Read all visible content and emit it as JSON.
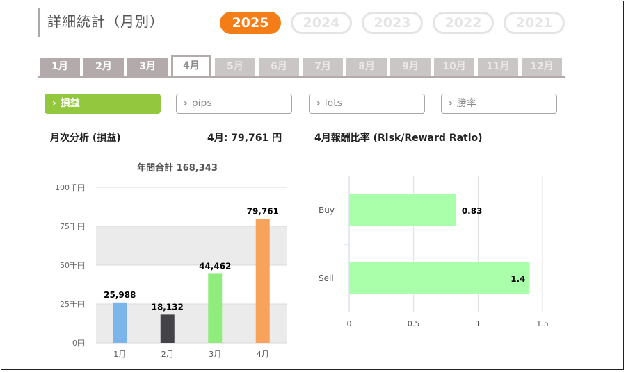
{
  "page": {
    "title": "詳細統計（月別）"
  },
  "years": [
    {
      "label": "2025",
      "active": true
    },
    {
      "label": "2024",
      "active": false
    },
    {
      "label": "2023",
      "active": false
    },
    {
      "label": "2022",
      "active": false
    },
    {
      "label": "2021",
      "active": false
    }
  ],
  "months": [
    {
      "label": "1月",
      "state": "available"
    },
    {
      "label": "2月",
      "state": "available"
    },
    {
      "label": "3月",
      "state": "available"
    },
    {
      "label": "4月",
      "state": "selected"
    },
    {
      "label": "5月",
      "state": "disabled"
    },
    {
      "label": "6月",
      "state": "disabled"
    },
    {
      "label": "7月",
      "state": "disabled"
    },
    {
      "label": "8月",
      "state": "disabled"
    },
    {
      "label": "9月",
      "state": "disabled"
    },
    {
      "label": "10月",
      "state": "disabled"
    },
    {
      "label": "11月",
      "state": "disabled"
    },
    {
      "label": "12月",
      "state": "disabled"
    }
  ],
  "metrics": [
    {
      "label": "損益",
      "active": true
    },
    {
      "label": "pips",
      "active": false
    },
    {
      "label": "lots",
      "active": false
    },
    {
      "label": "勝率",
      "active": false
    }
  ],
  "chevron": "›",
  "summary": {
    "monthly_analysis_label": "月次分析 (損益)",
    "month_value_label": "4月:  79,761 円",
    "ratio_label": "4月報酬比率 (Risk/Reward Ratio)"
  },
  "colors": {
    "accent_orange": "#f57d17",
    "accent_green": "#93c83e",
    "tab_gray": "#b3abab"
  },
  "chart_data": [
    {
      "type": "bar",
      "title": "年間合計 168,343",
      "categories": [
        "1月",
        "2月",
        "3月",
        "4月"
      ],
      "values": [
        25988,
        18132,
        44462,
        79761
      ],
      "value_labels": [
        "25,988",
        "18,132",
        "44,462",
        "79,761"
      ],
      "bar_colors": [
        "#7cb5ec",
        "#434348",
        "#90ed7d",
        "#f7a35c"
      ],
      "ylim": [
        0,
        100000
      ],
      "yticks": [
        0,
        25000,
        50000,
        75000,
        100000
      ],
      "ytick_labels": [
        "0円",
        "25千円",
        "50千円",
        "75千円",
        "100千円"
      ],
      "banded_background": true,
      "grid": true
    },
    {
      "type": "bar",
      "orientation": "horizontal",
      "categories": [
        "Buy",
        "Sell"
      ],
      "values": [
        0.83,
        1.4
      ],
      "value_labels": [
        "0.83",
        "1.4"
      ],
      "bar_color": "#aaffaa",
      "xlim": [
        0,
        1.5
      ],
      "xticks": [
        0,
        0.5,
        1,
        1.5
      ],
      "xtick_labels": [
        "0",
        "0.5",
        "1",
        "1.5"
      ],
      "grid": true
    }
  ]
}
